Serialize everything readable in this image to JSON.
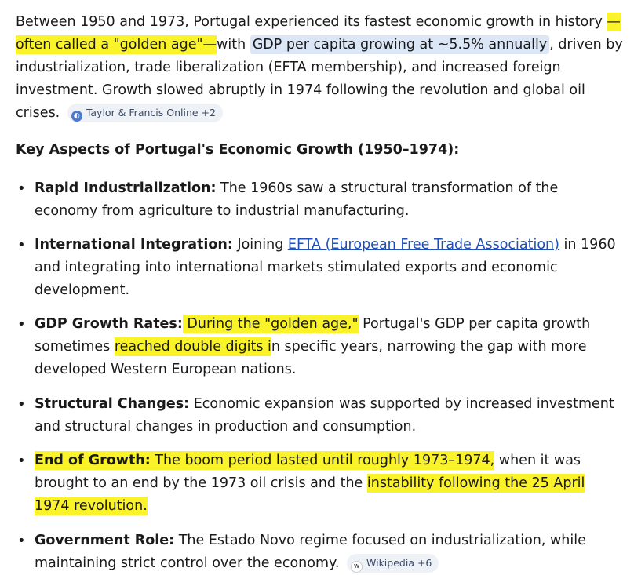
{
  "intro": {
    "part1": "Between 1950 and 1973, Portugal experienced its fastest economic growth in history ",
    "highlight1": "—often called a \"golden age\"—",
    "part2": "with ",
    "highlight2": "GDP per capita growing at ~5.5% annually",
    "part3": ", driven by industrialization, trade liberalization (EFTA membership), and increased foreign investment. Growth slowed abruptly in 1974 following the revolution and global oil crises.",
    "citation": {
      "icon": "taylor-francis-icon",
      "label": "Taylor & Francis Online +2"
    }
  },
  "heading": "Key Aspects of Portugal's Economic Growth (1950–1974):",
  "items": [
    {
      "term": "Rapid Industrialization:",
      "text": " The 1960s saw a structural transformation of the economy from agriculture to industrial manufacturing."
    },
    {
      "term": "International Integration:",
      "text_before": " Joining ",
      "link": "EFTA (European Free Trade Association)",
      "text_after": " in 1960 and integrating into international markets stimulated exports and economic development."
    },
    {
      "term": "GDP Growth Rates:",
      "highlight1": " During the \"golden age,\"",
      "text1": " Portugal's GDP per capita growth sometimes ",
      "highlight2": "reached double digits i",
      "text2": "n specific years, narrowing the gap with more developed Western European nations."
    },
    {
      "term": "Structural Changes:",
      "text": " Economic expansion was supported by increased investment and structural changes in production and consumption."
    },
    {
      "term": "End of Growth:",
      "highlight1": " The boom period lasted until roughly 1973–1974,",
      "text1": " when it was brought to an end by the 1973 oil crisis and the ",
      "highlight2": "instability following the 25 April 1974 revolution."
    },
    {
      "term": "Government Role:",
      "text": " The Estado Novo regime focused on industrialization, while maintaining strict control over the economy.",
      "citation": {
        "icon": "wikipedia-icon",
        "label": "Wikipedia +6"
      }
    }
  ],
  "colors": {
    "highlight_yellow": "#fbf32a",
    "highlight_blue": "#dbe6f7",
    "link": "#1f4fb8"
  }
}
